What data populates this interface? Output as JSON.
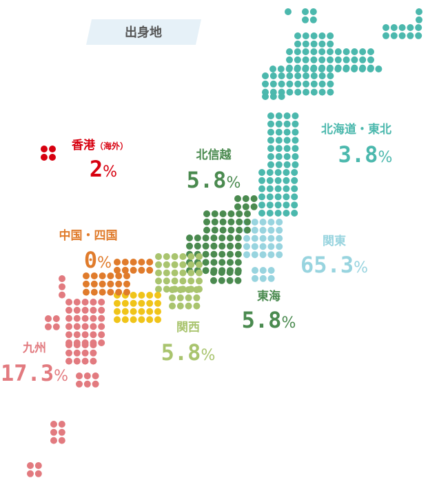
{
  "title": "出身地",
  "regions": [
    {
      "name": "香港",
      "note": "（海外）",
      "value": "2",
      "unit": "%",
      "color": "#d7000f"
    },
    {
      "name": "北信越",
      "value": "5.8",
      "unit": "%",
      "color": "#4a8a4f"
    },
    {
      "name": "北海道・東北",
      "value": "3.8",
      "unit": "%",
      "color": "#4bb8ad"
    },
    {
      "name": "中国・四国",
      "value": "0",
      "unit": "%",
      "color": "#e07b2b"
    },
    {
      "name": "関東",
      "value": "65.3",
      "unit": "%",
      "color": "#98d4df"
    },
    {
      "name": "東海",
      "value": "5.8",
      "unit": "%",
      "color": "#4a8a4f"
    },
    {
      "name": "関西",
      "value": "5.8",
      "unit": "%",
      "color": "#a9c46e"
    },
    {
      "name": "九州",
      "value": "17.3",
      "unit": "%",
      "color": "#e27a7f"
    }
  ]
}
